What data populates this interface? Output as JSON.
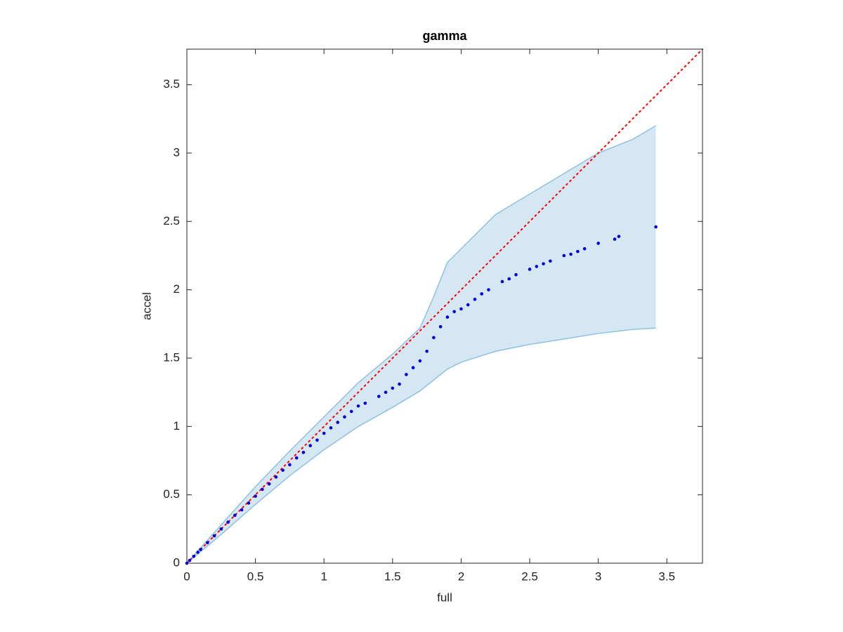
{
  "chart_data": {
    "type": "scatter",
    "title": "gamma",
    "x_label": "full",
    "y_label": "accel",
    "xlim": [
      0,
      3.76
    ],
    "ylim": [
      0,
      3.76
    ],
    "xticks": [
      0,
      0.5,
      1,
      1.5,
      2,
      2.5,
      3,
      3.5
    ],
    "yticks": [
      0,
      0.5,
      1,
      1.5,
      2,
      2.5,
      3,
      3.5
    ],
    "x": [
      0,
      0.02,
      0.05,
      0.08,
      0.1,
      0.15,
      0.2,
      0.25,
      0.3,
      0.35,
      0.4,
      0.45,
      0.5,
      0.55,
      0.6,
      0.65,
      0.7,
      0.75,
      0.8,
      0.85,
      0.9,
      0.95,
      1.0,
      1.05,
      1.1,
      1.15,
      1.2,
      1.25,
      1.3,
      1.4,
      1.45,
      1.5,
      1.55,
      1.6,
      1.65,
      1.7,
      1.75,
      1.8,
      1.85,
      1.9,
      1.95,
      2.0,
      2.05,
      2.1,
      2.15,
      2.2,
      2.3,
      2.35,
      2.4,
      2.5,
      2.55,
      2.6,
      2.65,
      2.75,
      2.8,
      2.85,
      2.9,
      3.0,
      3.12,
      3.15,
      3.42
    ],
    "values": [
      0,
      0.02,
      0.05,
      0.08,
      0.1,
      0.15,
      0.2,
      0.25,
      0.3,
      0.35,
      0.39,
      0.44,
      0.49,
      0.54,
      0.58,
      0.63,
      0.68,
      0.72,
      0.77,
      0.81,
      0.86,
      0.9,
      0.95,
      0.99,
      1.03,
      1.07,
      1.11,
      1.15,
      1.17,
      1.22,
      1.25,
      1.28,
      1.31,
      1.38,
      1.43,
      1.48,
      1.55,
      1.65,
      1.73,
      1.8,
      1.84,
      1.86,
      1.89,
      1.93,
      1.97,
      2.0,
      2.06,
      2.08,
      2.11,
      2.15,
      2.17,
      2.19,
      2.21,
      2.25,
      2.26,
      2.28,
      2.3,
      2.34,
      2.37,
      2.39,
      2.46
    ],
    "color": "#0000dd",
    "band": {
      "color": "#8ec0e0",
      "fill": "#d6e7f4",
      "x": [
        0,
        0.25,
        0.5,
        0.75,
        1.0,
        1.25,
        1.5,
        1.7,
        1.8,
        1.9,
        2.0,
        2.25,
        2.5,
        2.75,
        3.0,
        3.25,
        3.42
      ],
      "upper": [
        0,
        0.28,
        0.56,
        0.82,
        1.07,
        1.32,
        1.53,
        1.72,
        1.95,
        2.2,
        2.3,
        2.55,
        2.7,
        2.85,
        3.0,
        3.1,
        3.2
      ],
      "lower": [
        0,
        0.21,
        0.43,
        0.64,
        0.83,
        1.0,
        1.14,
        1.26,
        1.34,
        1.42,
        1.47,
        1.55,
        1.6,
        1.64,
        1.68,
        1.71,
        1.72
      ]
    },
    "reference_line": {
      "x": [
        0,
        3.76
      ],
      "y": [
        0,
        3.76
      ],
      "color": "#ff0000"
    }
  }
}
